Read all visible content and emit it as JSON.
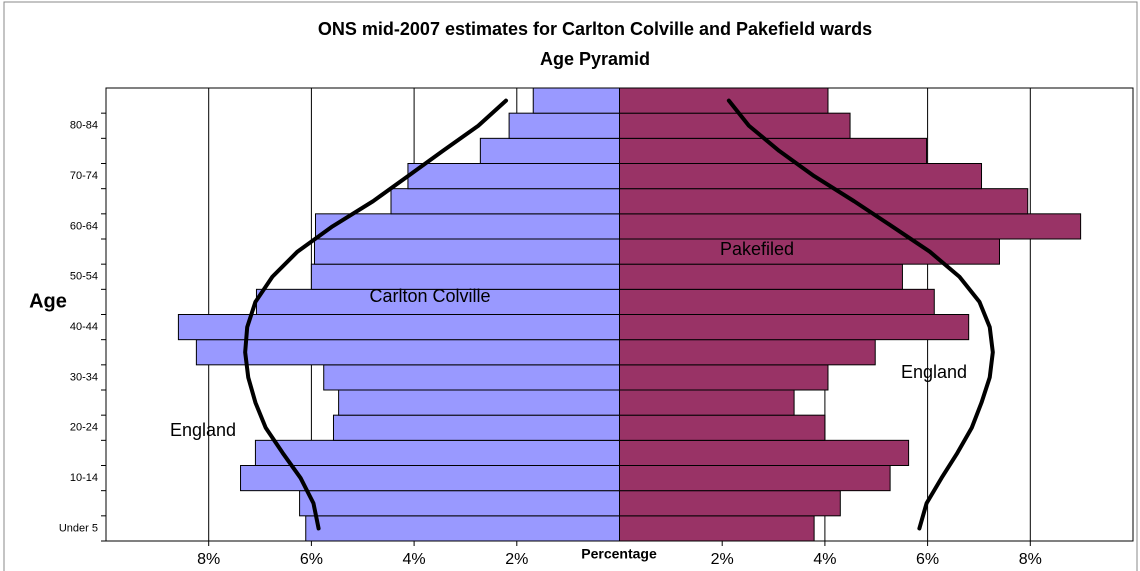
{
  "chart_data": {
    "type": "pyramid",
    "title": "ONS mid-2007 estimates for Carlton Colville and Pakefield wards",
    "subtitle": "Age Pyramid",
    "y_label": "Age",
    "x_label": "Percentage",
    "categories": [
      "Under 5",
      null,
      "10-14",
      null,
      "20-24",
      null,
      "30-34",
      null,
      "40-44",
      null,
      "50-54",
      null,
      "60-64",
      null,
      "70-74",
      null,
      "80-84",
      null
    ],
    "series": [
      {
        "name": "Carlton Colville",
        "color": "#9999ff",
        "values": [
          -6.11,
          -6.23,
          -7.38,
          -7.09,
          -5.57,
          -5.47,
          -5.76,
          -8.24,
          -8.59,
          -7.07,
          -6.0,
          -5.94,
          -5.92,
          -4.45,
          -4.12,
          -2.71,
          -2.15,
          -1.68
        ]
      },
      {
        "name": "Pakefiled",
        "color": "#993366",
        "values": [
          3.79,
          4.3,
          5.27,
          5.63,
          4.0,
          3.4,
          4.06,
          4.98,
          6.8,
          6.13,
          5.51,
          7.4,
          8.98,
          7.95,
          7.05,
          5.98,
          4.49,
          4.06
        ]
      },
      {
        "name": "England",
        "type": "line",
        "color": "#000000",
        "values": [
          -5.86,
          -5.96,
          -6.21,
          -6.56,
          -6.89,
          -7.09,
          -7.23,
          -7.29,
          -7.25,
          -7.09,
          -6.76,
          -6.27,
          -5.59,
          -4.8,
          -4.12,
          -3.44,
          -2.75,
          -2.21
        ]
      },
      {
        "name": "England",
        "type": "line",
        "color": "#000000",
        "values": [
          5.84,
          5.98,
          6.27,
          6.58,
          6.86,
          7.05,
          7.21,
          7.27,
          7.21,
          7.01,
          6.62,
          6.04,
          5.31,
          4.57,
          3.79,
          3.11,
          2.52,
          2.13
        ]
      }
    ],
    "xlim": [
      -10,
      10
    ],
    "xticks": [
      {
        "value": -8,
        "label": "8%"
      },
      {
        "value": -6,
        "label": "6%"
      },
      {
        "value": -4,
        "label": "4%"
      },
      {
        "value": -2,
        "label": "2%"
      },
      {
        "value": 2,
        "label": "2%"
      },
      {
        "value": 4,
        "label": "4%"
      },
      {
        "value": 6,
        "label": "6%"
      },
      {
        "value": 8,
        "label": "8%"
      }
    ],
    "grid": true
  }
}
